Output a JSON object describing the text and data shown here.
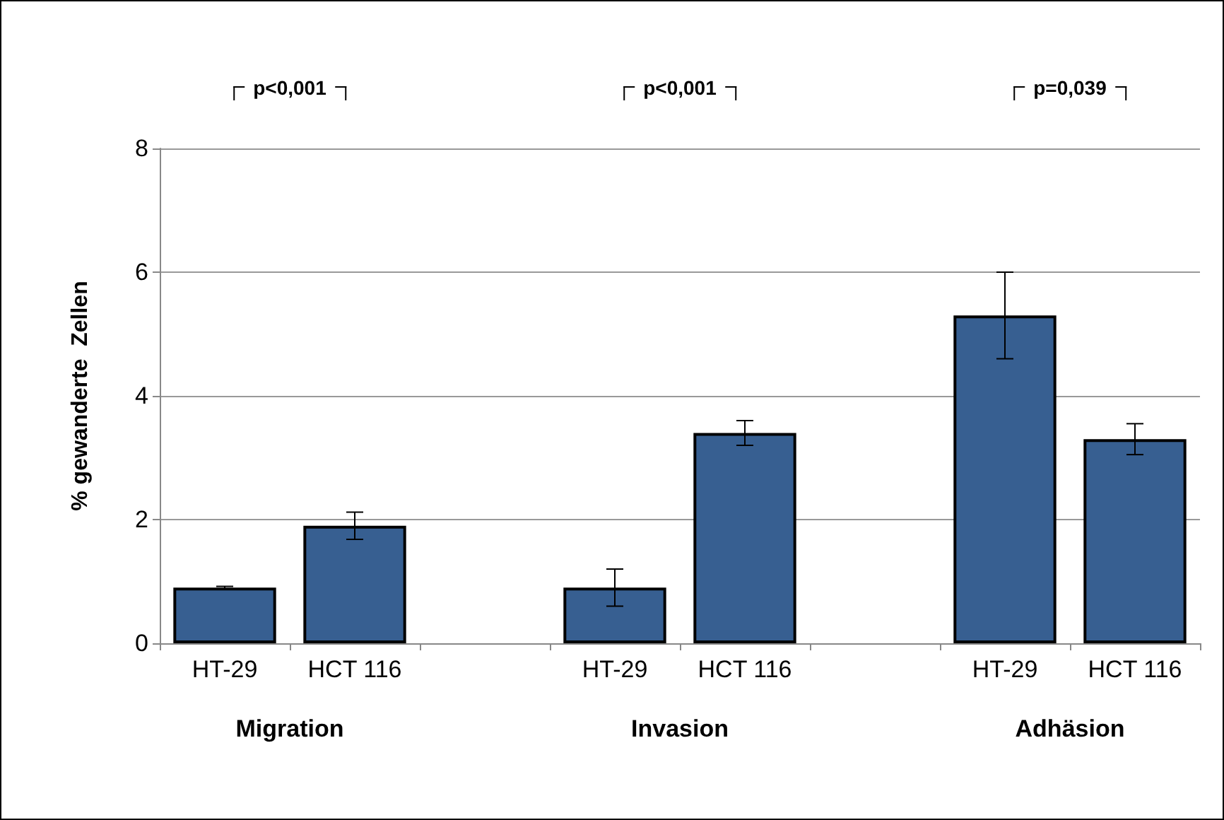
{
  "chart_data": {
    "type": "bar",
    "ylabel": "% gewanderte  Zellen",
    "categories": [
      "HT-29",
      "HCT 116",
      null,
      "HT-29",
      "HCT 116",
      null,
      "HT-29",
      "HCT 116"
    ],
    "values": [
      0.9,
      1.9,
      null,
      0.9,
      3.4,
      null,
      5.3,
      3.3
    ],
    "errors": [
      0.02,
      0.22,
      null,
      0.3,
      0.2,
      null,
      0.7,
      0.25
    ],
    "color": "#375f91",
    "ylim": [
      0,
      8
    ],
    "yticks": [
      0,
      2,
      4,
      6,
      8
    ],
    "grid": "y",
    "annotations": [
      "p<0,001",
      "p<0,001",
      "p=0,039",
      "Migration",
      "Invasion",
      "Adhäsion"
    ]
  }
}
